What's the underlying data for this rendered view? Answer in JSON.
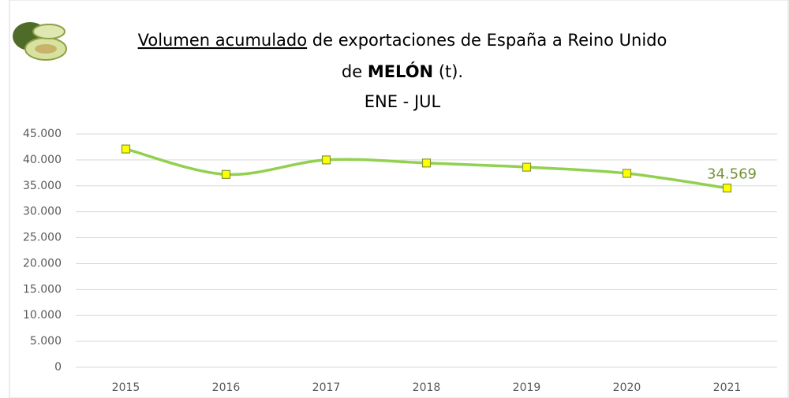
{
  "chart_data": {
    "type": "line",
    "title": [
      "Volumen acumulado",
      "de exportaciones de España a Reino Unido",
      "de",
      "MELÓN",
      "(t).",
      "ENE - JUL"
    ],
    "categories": [
      "2015",
      "2016",
      "2017",
      "2018",
      "2019",
      "2020",
      "2021"
    ],
    "series": [
      {
        "color": "#92d050",
        "marker_color": "#ffff00",
        "marker_edge": "#7f9a2f",
        "values": [
          42100,
          37200,
          40000,
          39400,
          38600,
          37400,
          34569
        ],
        "value_labels": [
          null,
          null,
          null,
          null,
          null,
          null,
          "34.569"
        ],
        "label_color": "#76923c"
      }
    ],
    "ylim": [
      0,
      45000
    ],
    "yticks": [
      0,
      {
        "value": 5000,
        "label": "5.000"
      },
      {
        "value": 10000,
        "label": "10.000"
      },
      {
        "value": 15000,
        "label": "15.000"
      },
      {
        "value": 20000,
        "label": "20.000"
      },
      {
        "value": 25000,
        "label": "25.000"
      },
      {
        "value": 30000,
        "label": "30.000"
      },
      {
        "value": 35000,
        "label": "35.000"
      },
      {
        "value": 40000,
        "label": "40.000"
      },
      {
        "value": 45000,
        "label": "45.000"
      }
    ],
    "grid": true
  }
}
